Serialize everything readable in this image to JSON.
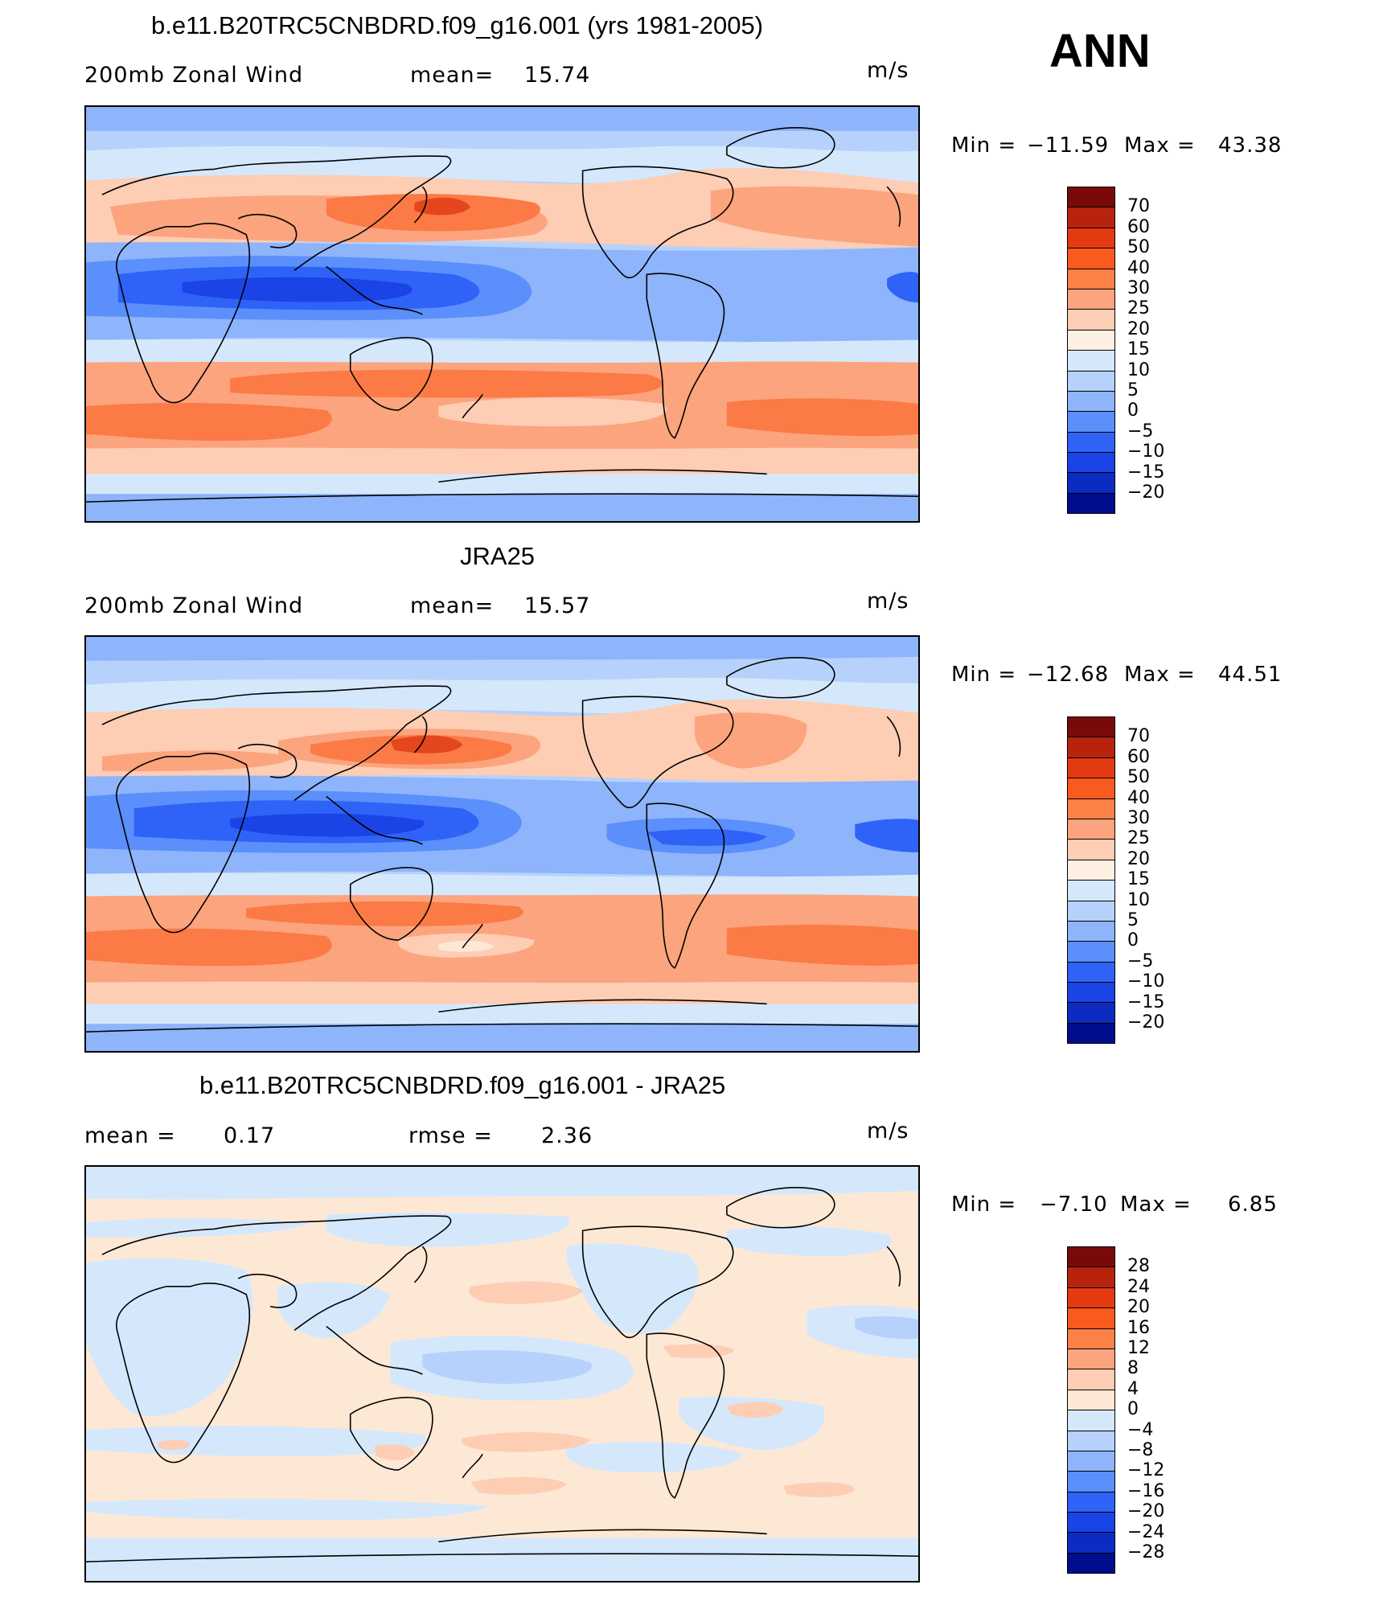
{
  "season": "ANN",
  "units": "m/s",
  "panels": [
    {
      "title": "b.e11.B20TRC5CNBDRD.f09_g16.001 (yrs 1981-2005)",
      "left_label": "200mb Zonal Wind",
      "stat_label": "mean=",
      "stat_value": "15.74",
      "min_label": "Min =",
      "min_value": "−11.59",
      "max_label": "Max =",
      "max_value": "43.38"
    },
    {
      "title": "JRA25",
      "left_label": "200mb Zonal Wind",
      "stat_label": "mean=",
      "stat_value": "15.57",
      "min_label": "Min =",
      "min_value": "−12.68",
      "max_label": "Max =",
      "max_value": "44.51"
    },
    {
      "title": "b.e11.B20TRC5CNBDRD.f09_g16.001 - JRA25",
      "left_label": "mean =",
      "left_value": "0.17",
      "stat_label": "rmse =",
      "stat_value": "2.36",
      "min_label": "Min =",
      "min_value": "−7.10",
      "max_label": "Max =",
      "max_value": "6.85"
    }
  ],
  "colorbar_abs": {
    "labels": [
      "70",
      "60",
      "50",
      "40",
      "30",
      "25",
      "20",
      "15",
      "10",
      "5",
      "0",
      "−5",
      "−10",
      "−15",
      "−20"
    ],
    "colors": [
      "#7a0a0a",
      "#b8230e",
      "#e43a12",
      "#fb5a1f",
      "#fc8146",
      "#fca47e",
      "#fdcdb4",
      "#fdf0e3",
      "#d5e8fb",
      "#b6d2fc",
      "#8eb4fb",
      "#5b8ffb",
      "#2f63f7",
      "#1a44e6",
      "#0c2bc0",
      "#000d8c"
    ]
  },
  "colorbar_diff": {
    "labels": [
      "28",
      "24",
      "20",
      "16",
      "12",
      "8",
      "4",
      "0",
      "−4",
      "−8",
      "−12",
      "−16",
      "−20",
      "−24",
      "−28"
    ],
    "colors": [
      "#7a0a0a",
      "#b8230e",
      "#e43a12",
      "#fb5a1f",
      "#fc8146",
      "#fca47e",
      "#fdcdb4",
      "#fde8d6",
      "#d5e8fb",
      "#b6d2fc",
      "#8eb4fb",
      "#5b8ffb",
      "#2f63f7",
      "#1a44e6",
      "#0c2bc0",
      "#000d8c"
    ]
  },
  "colors": {
    "strong_east": "#e4471d",
    "east": "#fb7a45",
    "mod_east": "#fca47e",
    "weak_east": "#fdcdb4",
    "pale_east": "#fde8d6",
    "pale_west": "#d5e8fb",
    "weak_west": "#b6d2fc",
    "west": "#8eb4fb",
    "mod_west": "#5b8ffb",
    "strong_west": "#2f63f7",
    "deep_west": "#1a44e6",
    "darkest_west": "#0c2bc0"
  }
}
